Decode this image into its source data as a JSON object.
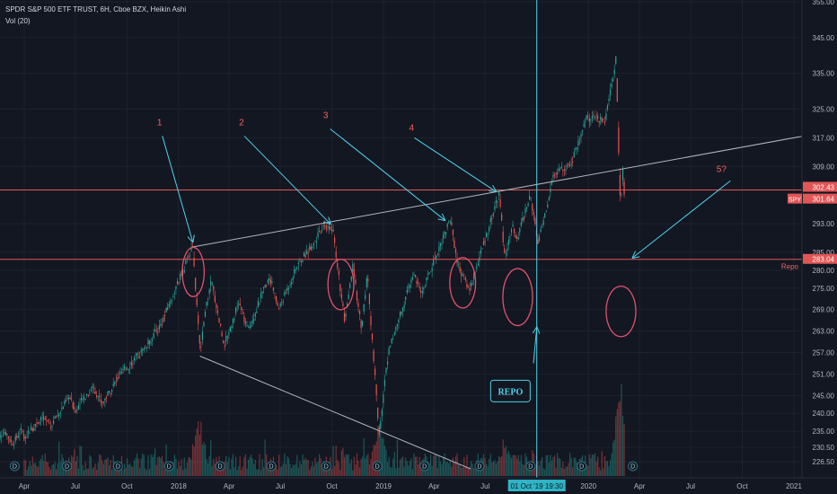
{
  "header": {
    "symbol_line": "SPDR S&P 500 ETF TRUST, 6H, Cboe BZX, Heikin Ashi",
    "volume_line": "Vol (20)"
  },
  "colors": {
    "background": "#131722",
    "grid": "#1e222d",
    "up": "#26a69a",
    "down": "#ef5350",
    "annotation": "#f06060",
    "arrow": "#4fd1e8",
    "trendline": "#b2b5be",
    "axis_text": "#b2b5be"
  },
  "chart_data": {
    "type": "candlestick",
    "title": "SPDR S&P 500 ETF TRUST, 6H, Cboe BZX, Heikin Ashi",
    "x_ticks": [
      "Apr",
      "Jul",
      "Oct",
      "2018",
      "Apr",
      "Jul",
      "Oct",
      "2019",
      "Apr",
      "Jul",
      "Oct",
      "2020",
      "Apr",
      "Jul",
      "Oct",
      "2021"
    ],
    "y_ticks": [
      "355.00",
      "345.00",
      "335.00",
      "325.00",
      "317.00",
      "309.00",
      "302.43",
      "301.64",
      "293.00",
      "285.00",
      "283.04",
      "280.00",
      "275.00",
      "269.00",
      "263.00",
      "257.00",
      "251.00",
      "245.00",
      "240.00",
      "235.00",
      "230.50",
      "226.50"
    ],
    "ylim": [
      224.5,
      355
    ],
    "price_anchors": [
      [
        "2017-01-02",
        237.5
      ],
      [
        "2017-01-25",
        236.0
      ],
      [
        "2017-03-01",
        240.5
      ],
      [
        "2017-03-27",
        232.5
      ],
      [
        "2017-05-01",
        239.0
      ],
      [
        "2017-05-18",
        236.5
      ],
      [
        "2017-06-20",
        244.5
      ],
      [
        "2017-07-01",
        241.0
      ],
      [
        "2017-08-01",
        247.5
      ],
      [
        "2017-08-18",
        243.0
      ],
      [
        "2017-09-20",
        251.0
      ],
      [
        "2017-11-01",
        258.0
      ],
      [
        "2017-12-01",
        265.0
      ],
      [
        "2018-01-26",
        286.5
      ],
      [
        "2018-02-08",
        257.5
      ],
      [
        "2018-02-27",
        278.0
      ],
      [
        "2018-03-23",
        259.0
      ],
      [
        "2018-04-18",
        271.0
      ],
      [
        "2018-05-04",
        263.0
      ],
      [
        "2018-06-12",
        278.5
      ],
      [
        "2018-06-28",
        269.0
      ],
      [
        "2018-08-01",
        281.5
      ],
      [
        "2018-09-20",
        292.5
      ],
      [
        "2018-10-03",
        291.0
      ],
      [
        "2018-10-24",
        265.0
      ],
      [
        "2018-11-07",
        281.0
      ],
      [
        "2018-11-23",
        263.5
      ],
      [
        "2018-12-03",
        279.0
      ],
      [
        "2018-12-24",
        234.5
      ],
      [
        "2019-01-10",
        258.0
      ],
      [
        "2019-02-25",
        279.5
      ],
      [
        "2019-03-08",
        273.0
      ],
      [
        "2019-04-30",
        294.5
      ],
      [
        "2019-05-13",
        281.5
      ],
      [
        "2019-06-03",
        274.5
      ],
      [
        "2019-07-26",
        301.5
      ],
      [
        "2019-08-05",
        283.0
      ],
      [
        "2019-08-20",
        293.0
      ],
      [
        "2019-08-26",
        288.0
      ],
      [
        "2019-09-19",
        301.0
      ],
      [
        "2019-10-03",
        287.0
      ],
      [
        "2019-11-01",
        307.0
      ],
      [
        "2019-12-03",
        310.5
      ],
      [
        "2019-12-27",
        322.5
      ],
      [
        "2020-01-31",
        322.0
      ],
      [
        "2020-02-19",
        339.0
      ],
      [
        "2020-02-27",
        296.5
      ],
      [
        "2020-03-03",
        310.5
      ],
      [
        "2020-03-06",
        296.0
      ]
    ],
    "volume_peaks": [
      [
        "2018-02-06",
        0.48
      ],
      [
        "2018-12-24",
        0.44
      ],
      [
        "2019-08-05",
        0.3
      ],
      [
        "2020-02-28",
        0.78
      ]
    ],
    "horizontal_lines": [
      {
        "price": 302.43,
        "label": "302.43"
      },
      {
        "price": 283.04,
        "label": "283.04",
        "text": "Repo"
      }
    ],
    "last_price": {
      "price": 301.64,
      "label": "301.64",
      "symbol": "SPY"
    },
    "trendlines": [
      {
        "from": [
          "2018-01-26",
          286.5
        ],
        "to": [
          "2021-02-05",
          318.0
        ]
      },
      {
        "from": [
          "2018-02-08",
          256.0
        ],
        "to": [
          "2019-06-05",
          224.5
        ]
      }
    ],
    "vertical_marker": {
      "date": "2019-10-01",
      "label": "01 Oct '19   19:30"
    },
    "annotations": [
      {
        "text": "1",
        "at": [
          "2017-11-28",
          320.5
        ]
      },
      {
        "text": "2",
        "at": [
          "2018-04-23",
          320.5
        ]
      },
      {
        "text": "3",
        "at": [
          "2018-09-20",
          322.5
        ]
      },
      {
        "text": "4",
        "at": [
          "2019-02-20",
          319.0
        ]
      },
      {
        "text": "5?",
        "at": [
          "2020-08-25",
          307.5
        ]
      },
      {
        "text": "REPO",
        "at": [
          "2019-08-15",
          246.0
        ]
      }
    ],
    "dividend_markers": [
      "2017-03-15",
      "2017-06-16",
      "2017-09-15",
      "2017-12-15",
      "2018-03-16",
      "2018-06-15",
      "2018-09-21",
      "2018-12-21",
      "2019-03-15",
      "2019-06-21",
      "2019-09-20",
      "2019-12-20",
      "2020-03-20"
    ],
    "dividend_label": "D"
  }
}
